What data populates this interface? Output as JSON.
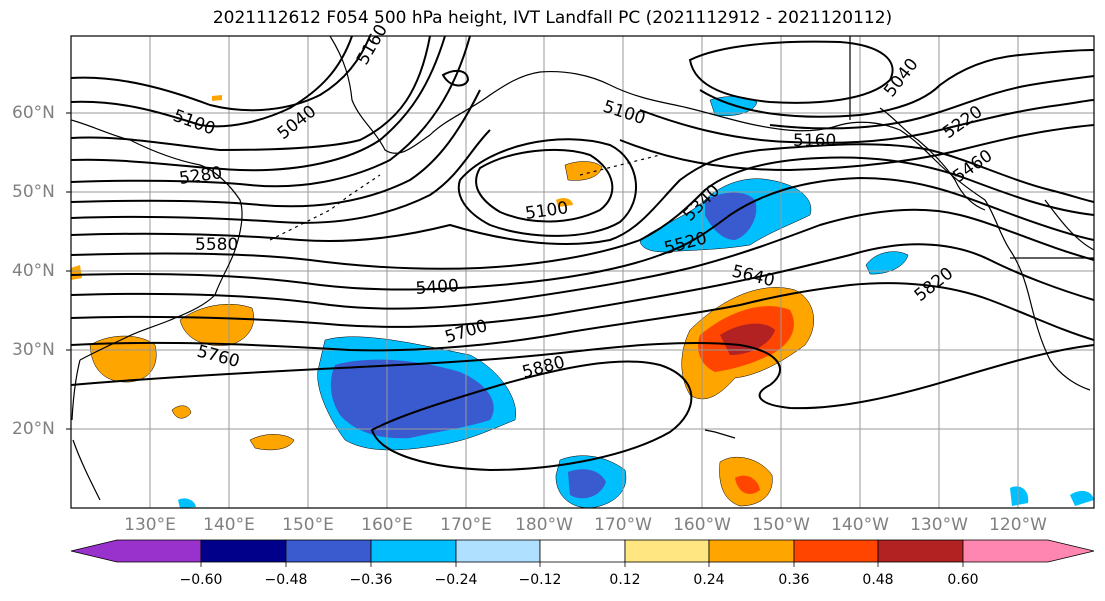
{
  "title": "2021112612 F054 500 hPa height, IVT Landfall PC (2021112912 - 2021120112)",
  "map": {
    "projection": "PlateCarree",
    "lat_labels": [
      "60°N",
      "50°N",
      "40°N",
      "30°N",
      "20°N"
    ],
    "lon_labels": [
      "130°E",
      "140°E",
      "150°E",
      "160°E",
      "170°E",
      "180°W",
      "170°W",
      "160°W",
      "150°W",
      "140°W",
      "130°W",
      "120°W"
    ],
    "contour_labels": [
      "5100",
      "5040",
      "5160",
      "5280",
      "5580",
      "5400",
      "5760",
      "5700",
      "5880",
      "5100",
      "5340",
      "5520",
      "5640",
      "5820",
      "5460",
      "5220",
      "5040",
      "5100",
      "5160",
      "5100"
    ]
  },
  "colorbar": {
    "ticks": [
      "−0.60",
      "−0.48",
      "−0.36",
      "−0.24",
      "−0.12",
      "0.12",
      "0.24",
      "0.36",
      "0.48",
      "0.60"
    ],
    "colors": [
      "#9932cc",
      "#00008b",
      "#3a5bd0",
      "#00bfff",
      "#b0e0ff",
      "#ffffff",
      "#ffe680",
      "#ffa500",
      "#ff4500",
      "#b22222",
      "#ff86b0"
    ]
  }
}
